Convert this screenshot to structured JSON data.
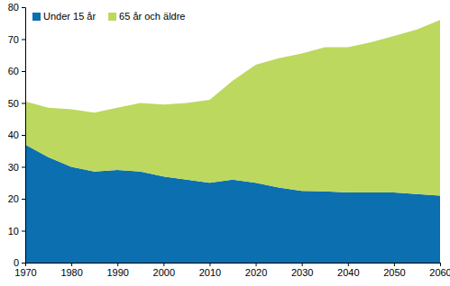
{
  "chart_data": {
    "type": "area",
    "stacked": true,
    "legend": "top-left",
    "grid": false,
    "x": [
      1970,
      1975,
      1980,
      1985,
      1990,
      1995,
      2000,
      2005,
      2010,
      2015,
      2020,
      2025,
      2030,
      2035,
      2040,
      2045,
      2050,
      2055,
      2060
    ],
    "series": [
      {
        "name": "Under 15 år",
        "color": "#0c6fb0",
        "values": [
          37,
          33,
          30,
          28.5,
          29,
          28.5,
          27,
          26,
          25,
          26,
          25,
          23.5,
          22.5,
          22.3,
          22,
          22,
          22,
          21.5,
          21
        ]
      },
      {
        "name": "65 år och äldre",
        "color": "#bcd85f",
        "values": [
          13.5,
          15.5,
          18,
          18.5,
          19.5,
          21.5,
          22.5,
          24,
          26,
          31,
          37,
          40.5,
          43,
          45.2,
          45.5,
          47,
          49,
          51.5,
          55
        ]
      }
    ],
    "xlim": [
      1970,
      2060
    ],
    "xticks": [
      1970,
      1980,
      1990,
      2000,
      2010,
      2020,
      2030,
      2040,
      2050,
      2060
    ],
    "ylim": [
      0,
      80
    ],
    "yticks": [
      0,
      10,
      20,
      30,
      40,
      50,
      60,
      70,
      80
    ]
  }
}
